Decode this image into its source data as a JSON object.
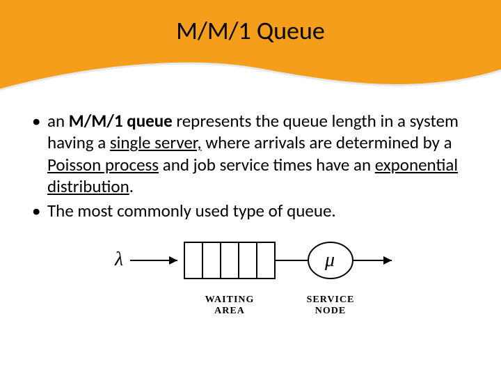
{
  "title": "M/M/1 Queue",
  "bullets": [
    {
      "parts": [
        {
          "t": "an "
        },
        {
          "t": "M/M/1 queue",
          "bold": true
        },
        {
          "t": " represents the queue length in a system having a "
        },
        {
          "t": "single server,",
          "underline": true
        },
        {
          "t": " where arrivals are determined by a "
        },
        {
          "t": "Poisson process",
          "underline": true
        },
        {
          "t": " and job service times have an "
        },
        {
          "t": "exponential distribution",
          "underline": true
        },
        {
          "t": "."
        }
      ]
    },
    {
      "parts": [
        {
          "t": "The most commonly used type of queue."
        }
      ]
    }
  ],
  "diagram": {
    "lambda": "λ",
    "mu": "μ",
    "waiting_label_1": "WAITING",
    "waiting_label_2": "AREA",
    "service_label_1": "SERVICE",
    "service_label_2": "NODE",
    "queue_slots": 5,
    "colors": {
      "band": "#f59e1b",
      "stroke": "#000000",
      "bg": "#ffffff"
    }
  }
}
